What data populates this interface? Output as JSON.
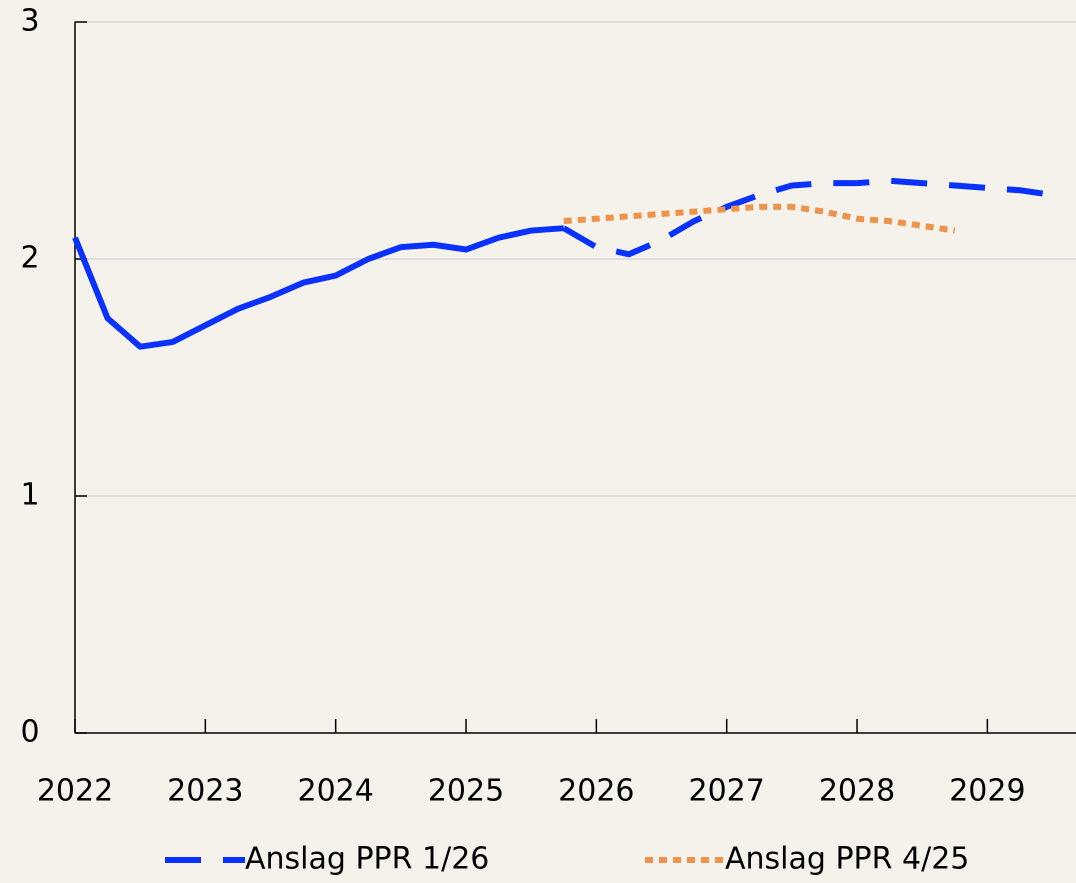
{
  "chart_data": {
    "type": "line",
    "x": [
      2022,
      2022.25,
      2022.5,
      2022.75,
      2023,
      2023.25,
      2023.5,
      2023.75,
      2024,
      2024.25,
      2024.5,
      2024.75,
      2025,
      2025.25,
      2025.5,
      2025.75,
      2026,
      2026.25,
      2026.5,
      2026.75,
      2027,
      2027.25,
      2027.5,
      2027.75,
      2028,
      2028.25,
      2028.5,
      2028.75,
      2029,
      2029.25,
      2029.5
    ],
    "series": [
      {
        "color": "#0a32ff",
        "style": "solid",
        "values": [
          2.09,
          1.75,
          1.63,
          1.65,
          1.72,
          1.79,
          1.84,
          1.9,
          1.93,
          2.0,
          2.05,
          2.06,
          2.04,
          2.09,
          2.12,
          2.13,
          null,
          null,
          null,
          null,
          null,
          null,
          null,
          null,
          null,
          null,
          null,
          null,
          null,
          null,
          null
        ]
      },
      {
        "name": "Anslag PPR 1/26",
        "color": "#0a32ff",
        "style": "dashed",
        "values": [
          null,
          null,
          null,
          null,
          null,
          null,
          null,
          null,
          null,
          null,
          null,
          null,
          null,
          null,
          null,
          2.13,
          2.05,
          2.02,
          2.08,
          2.16,
          2.22,
          2.27,
          2.31,
          2.32,
          2.32,
          2.33,
          2.32,
          2.31,
          2.3,
          2.29,
          2.27
        ]
      },
      {
        "name": "Anslag PPR 4/25",
        "color": "#f0934a",
        "style": "dotted",
        "values": [
          null,
          null,
          null,
          null,
          null,
          null,
          null,
          null,
          null,
          null,
          null,
          null,
          null,
          null,
          null,
          2.16,
          2.17,
          2.18,
          2.19,
          2.2,
          2.21,
          2.22,
          2.22,
          2.2,
          2.17,
          2.16,
          2.14,
          2.12,
          null,
          null,
          null
        ]
      }
    ],
    "xlim": [
      2022,
      2029.68
    ],
    "xticks": [
      2022,
      2023,
      2024,
      2025,
      2026,
      2027,
      2028,
      2029
    ],
    "ylim": [
      0,
      3
    ],
    "yticks": [
      0,
      1,
      2,
      3
    ],
    "grid": true
  }
}
